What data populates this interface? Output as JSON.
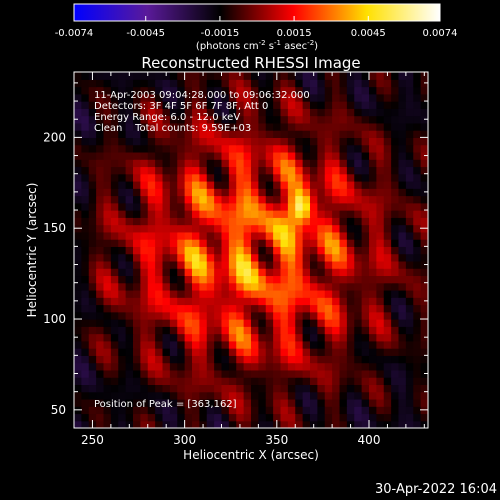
{
  "chart_data": {
    "type": "heatmap",
    "title": "Reconstructed RHESSI Image",
    "xlabel": "Heliocentric X (arcsec)",
    "ylabel": "Heliocentric Y (arcsec)",
    "xlim": [
      240,
      432
    ],
    "ylim": [
      40,
      236
    ],
    "xticks": [
      250,
      300,
      350,
      400
    ],
    "yticks": [
      50,
      100,
      150,
      200
    ],
    "colorbar": {
      "range": [
        -0.0074,
        0.0074
      ],
      "ticks": [
        "-0.0074",
        "-0.0045",
        "-0.0015",
        "0.0015",
        "0.0045",
        "0.0074"
      ],
      "tick_values": [
        -0.0074,
        -0.0045,
        -0.0015,
        0.0015,
        0.0045,
        0.0074
      ],
      "unit_base": "(photons cm",
      "unit_exp1": "-2",
      "unit_mid": " s",
      "unit_exp2": "-1",
      "unit_mid2": " asec",
      "unit_exp3": "-2",
      "unit_end": ")",
      "colors": [
        "#0000ff",
        "#5a1a9a",
        "#000000",
        "#ff0000",
        "#ffe000",
        "#ffffff"
      ]
    },
    "annotations": [
      "11-Apr-2003 09:04:28.000 to 09:06:32.000",
      "Detectors: 3F 4F 5F 6F 7F 8F, Att 0",
      "Energy Range: 6.0 - 12.0 keV",
      "Clean    Total counts: 9.59E+03"
    ],
    "peak_label": "Position of Peak = [363,162]",
    "peak": {
      "x": 363,
      "y": 162,
      "value": 0.0074
    },
    "background_level": -0.0018,
    "central_level": 0.0024
  },
  "footer": {
    "timestamp": "30-Apr-2022 16:04"
  }
}
